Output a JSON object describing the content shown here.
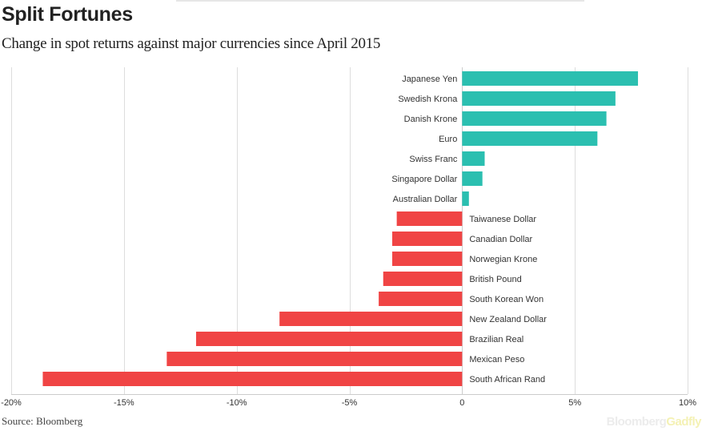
{
  "header": {
    "title": "Split Fortunes",
    "subtitle": "Change in spot returns against major currencies since April 2015"
  },
  "footer": {
    "source": "Source: Bloomberg",
    "brand_part1": "Bloomberg",
    "brand_part2": "Gadfly"
  },
  "colors": {
    "positive": "#2bbfb0",
    "negative": "#f04444",
    "grid": "#dddddd",
    "axis": "#cccccc"
  },
  "chart_data": {
    "type": "bar",
    "orientation": "horizontal",
    "title": "Split Fortunes",
    "subtitle": "Change in spot returns against major currencies since April 2015",
    "xlim": [
      -20,
      10
    ],
    "xticks": [
      -20,
      -15,
      -10,
      -5,
      0,
      5,
      10
    ],
    "xtick_labels": [
      "-20%",
      "-15%",
      "-10%",
      "-5%",
      "0",
      "5%",
      "10%"
    ],
    "grid": true,
    "categories": [
      "Japanese Yen",
      "Swedish Krona",
      "Danish Krone",
      "Euro",
      "Swiss Franc",
      "Singapore Dollar",
      "Australian Dollar",
      "Taiwanese Dollar",
      "Canadian Dollar",
      "Norwegian Krone",
      "British Pound",
      "South Korean Won",
      "New Zealand Dollar",
      "Brazilian Real",
      "Mexican Peso",
      "South African Rand"
    ],
    "values": [
      7.8,
      6.8,
      6.4,
      6.0,
      1.0,
      0.9,
      0.3,
      -2.9,
      -3.1,
      -3.1,
      -3.5,
      -3.7,
      -8.1,
      -11.8,
      -13.1,
      -18.6
    ]
  }
}
